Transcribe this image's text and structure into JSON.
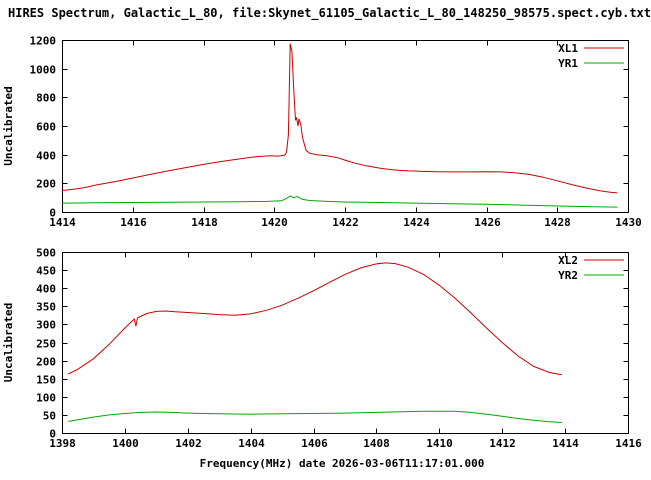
{
  "page": {
    "title": "HIRES Spectrum, Galactic_L_80, file:Skynet_61105_Galactic_L_80_148250_98575.spect.cyb.txt",
    "xlabel": "Frequency(MHz) date 2026-03-06T11:17:01.000"
  },
  "chart_data": [
    {
      "type": "line",
      "title": "",
      "ylabel": "Uncalibrated",
      "xlabel": "",
      "xlim": [
        1414,
        1430
      ],
      "ylim": [
        0,
        1200
      ],
      "xticks": [
        1414,
        1416,
        1418,
        1420,
        1422,
        1424,
        1426,
        1428,
        1430
      ],
      "yticks": [
        0,
        200,
        400,
        600,
        800,
        1000,
        1200
      ],
      "grid": false,
      "legend_position": "top-right",
      "series": [
        {
          "name": "XL1",
          "color": "#cc0000",
          "points": [
            [
              1414.0,
              150
            ],
            [
              1414.3,
              158
            ],
            [
              1414.6,
              168
            ],
            [
              1415.0,
              190
            ],
            [
              1415.5,
              212
            ],
            [
              1416.0,
              237
            ],
            [
              1416.5,
              262
            ],
            [
              1417.0,
              287
            ],
            [
              1417.5,
              310
            ],
            [
              1418.0,
              332
            ],
            [
              1418.5,
              352
            ],
            [
              1419.0,
              370
            ],
            [
              1419.3,
              380
            ],
            [
              1419.6,
              388
            ],
            [
              1419.9,
              392
            ],
            [
              1420.1,
              390
            ],
            [
              1420.2,
              393
            ],
            [
              1420.3,
              398
            ],
            [
              1420.35,
              420
            ],
            [
              1420.4,
              540
            ],
            [
              1420.45,
              1175
            ],
            [
              1420.5,
              1120
            ],
            [
              1420.55,
              860
            ],
            [
              1420.6,
              640
            ],
            [
              1420.63,
              660
            ],
            [
              1420.67,
              600
            ],
            [
              1420.7,
              650
            ],
            [
              1420.75,
              610
            ],
            [
              1420.8,
              520
            ],
            [
              1420.9,
              430
            ],
            [
              1421.0,
              410
            ],
            [
              1421.2,
              400
            ],
            [
              1421.5,
              393
            ],
            [
              1421.8,
              378
            ],
            [
              1422.0,
              362
            ],
            [
              1422.3,
              340
            ],
            [
              1422.6,
              322
            ],
            [
              1423.0,
              305
            ],
            [
              1423.4,
              293
            ],
            [
              1423.8,
              287
            ],
            [
              1424.2,
              283
            ],
            [
              1424.6,
              281
            ],
            [
              1425.0,
              280
            ],
            [
              1425.5,
              280
            ],
            [
              1426.0,
              281
            ],
            [
              1426.4,
              280
            ],
            [
              1426.8,
              274
            ],
            [
              1427.2,
              262
            ],
            [
              1427.6,
              243
            ],
            [
              1428.0,
              218
            ],
            [
              1428.4,
              192
            ],
            [
              1428.8,
              168
            ],
            [
              1429.2,
              148
            ],
            [
              1429.5,
              138
            ],
            [
              1429.7,
              133
            ]
          ]
        },
        {
          "name": "YR1",
          "color": "#00a800",
          "points": [
            [
              1414.0,
              62
            ],
            [
              1414.5,
              63
            ],
            [
              1415.0,
              64
            ],
            [
              1416.0,
              66
            ],
            [
              1417.0,
              68
            ],
            [
              1418.0,
              70
            ],
            [
              1419.0,
              72
            ],
            [
              1419.8,
              74
            ],
            [
              1420.2,
              78
            ],
            [
              1420.35,
              95
            ],
            [
              1420.45,
              112
            ],
            [
              1420.55,
              100
            ],
            [
              1420.65,
              108
            ],
            [
              1420.8,
              88
            ],
            [
              1421.0,
              80
            ],
            [
              1421.5,
              74
            ],
            [
              1422.0,
              70
            ],
            [
              1423.0,
              66
            ],
            [
              1424.0,
              62
            ],
            [
              1425.0,
              58
            ],
            [
              1426.0,
              54
            ],
            [
              1427.0,
              48
            ],
            [
              1428.0,
              42
            ],
            [
              1429.0,
              37
            ],
            [
              1429.7,
              34
            ]
          ]
        }
      ]
    },
    {
      "type": "line",
      "title": "",
      "ylabel": "Uncalibrated",
      "xlabel": "Frequency(MHz) date 2026-03-06T11:17:01.000",
      "xlim": [
        1398,
        1416
      ],
      "ylim": [
        0,
        500
      ],
      "xticks": [
        1398,
        1400,
        1402,
        1404,
        1406,
        1408,
        1410,
        1412,
        1414,
        1416
      ],
      "yticks": [
        0,
        50,
        100,
        150,
        200,
        250,
        300,
        350,
        400,
        450,
        500
      ],
      "grid": false,
      "legend_position": "top-right",
      "series": [
        {
          "name": "XL2",
          "color": "#cc0000",
          "points": [
            [
              1398.2,
              163
            ],
            [
              1398.5,
              176
            ],
            [
              1399.0,
              205
            ],
            [
              1399.5,
              245
            ],
            [
              1400.0,
              290
            ],
            [
              1400.3,
              315
            ],
            [
              1400.35,
              295
            ],
            [
              1400.4,
              318
            ],
            [
              1400.7,
              330
            ],
            [
              1401.0,
              336
            ],
            [
              1401.3,
              337
            ],
            [
              1401.6,
              335
            ],
            [
              1402.0,
              333
            ],
            [
              1402.5,
              330
            ],
            [
              1403.0,
              327
            ],
            [
              1403.5,
              325
            ],
            [
              1404.0,
              329
            ],
            [
              1404.5,
              339
            ],
            [
              1405.0,
              353
            ],
            [
              1405.5,
              372
            ],
            [
              1406.0,
              393
            ],
            [
              1406.5,
              416
            ],
            [
              1407.0,
              438
            ],
            [
              1407.5,
              456
            ],
            [
              1408.0,
              467
            ],
            [
              1408.3,
              470
            ],
            [
              1408.6,
              468
            ],
            [
              1409.0,
              458
            ],
            [
              1409.5,
              438
            ],
            [
              1410.0,
              408
            ],
            [
              1410.5,
              372
            ],
            [
              1411.0,
              332
            ],
            [
              1411.5,
              290
            ],
            [
              1412.0,
              250
            ],
            [
              1412.5,
              213
            ],
            [
              1413.0,
              184
            ],
            [
              1413.5,
              167
            ],
            [
              1413.9,
              161
            ]
          ]
        },
        {
          "name": "YR2",
          "color": "#00a800",
          "points": [
            [
              1398.2,
              32
            ],
            [
              1398.6,
              38
            ],
            [
              1399.0,
              44
            ],
            [
              1399.5,
              50
            ],
            [
              1400.0,
              54
            ],
            [
              1400.5,
              57
            ],
            [
              1401.0,
              58
            ],
            [
              1401.5,
              57
            ],
            [
              1402.0,
              55
            ],
            [
              1402.5,
              54
            ],
            [
              1403.0,
              53
            ],
            [
              1404.0,
              52
            ],
            [
              1405.0,
              53
            ],
            [
              1406.0,
              54
            ],
            [
              1407.0,
              55
            ],
            [
              1408.0,
              57
            ],
            [
              1409.0,
              59
            ],
            [
              1409.5,
              60
            ],
            [
              1410.0,
              60
            ],
            [
              1410.5,
              60
            ],
            [
              1411.0,
              57
            ],
            [
              1411.5,
              52
            ],
            [
              1412.0,
              46
            ],
            [
              1412.5,
              40
            ],
            [
              1413.0,
              35
            ],
            [
              1413.5,
              31
            ],
            [
              1413.9,
              29
            ]
          ]
        }
      ]
    }
  ]
}
